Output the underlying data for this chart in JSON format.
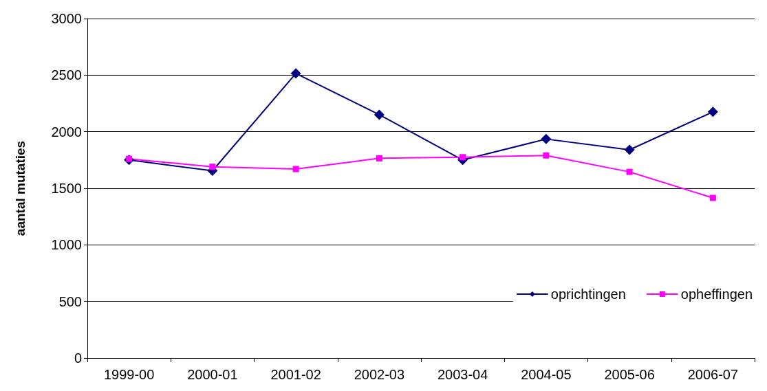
{
  "chart_data": {
    "type": "line",
    "ylabel": "aantal mutaties",
    "categories": [
      "1999-00",
      "2000-01",
      "2001-02",
      "2002-03",
      "2003-04",
      "2004-05",
      "2005-06",
      "2006-07"
    ],
    "series": [
      {
        "name": "oprichtingen",
        "color": "#000080",
        "marker": "diamond",
        "values": [
          1750,
          1655,
          2515,
          2150,
          1750,
          1935,
          1840,
          2175
        ]
      },
      {
        "name": "opheffingen",
        "color": "#ff00ff",
        "marker": "square",
        "values": [
          1760,
          1690,
          1670,
          1765,
          1775,
          1790,
          1645,
          1415
        ]
      }
    ],
    "ylim": [
      0,
      3000
    ],
    "yticks": [
      0,
      500,
      1000,
      1500,
      2000,
      2500,
      3000
    ],
    "grid": "y",
    "legend": "bottom right",
    "line_style": "solid"
  }
}
